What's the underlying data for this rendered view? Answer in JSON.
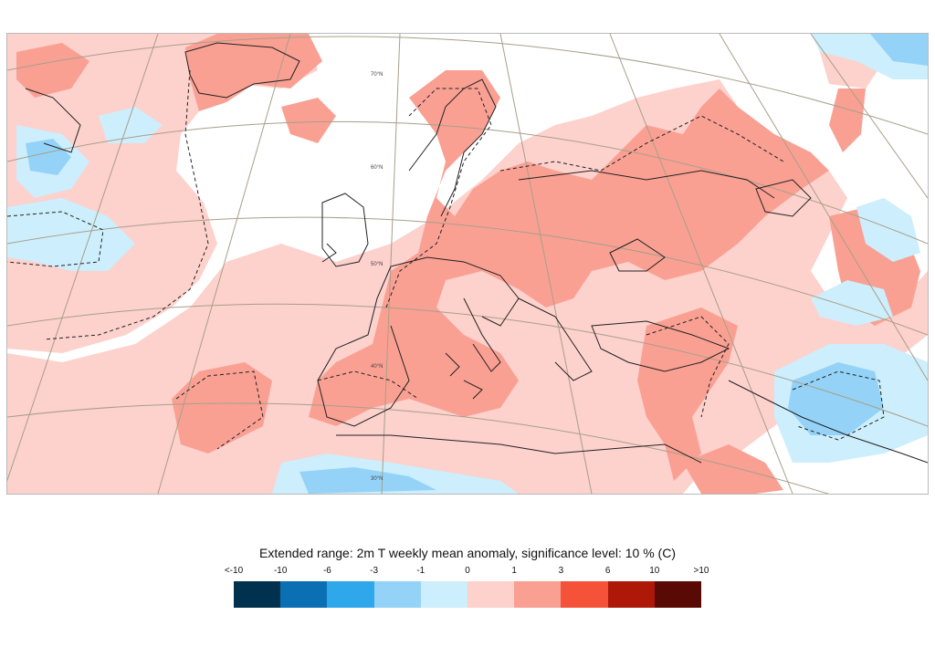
{
  "legend": {
    "title": "Extended range: 2m T weekly mean anomaly, significance level: 10 % (C)",
    "ticks": [
      "<-10",
      "-10",
      "-6",
      "-3",
      "-1",
      "0",
      "1",
      "3",
      "6",
      "10",
      ">10"
    ],
    "colors": [
      "#00324f",
      "#0a6fb3",
      "#2ea8ea",
      "#94d3f7",
      "#cdeefc",
      "#fdd1cc",
      "#f9a093",
      "#f4533a",
      "#ae1809",
      "#5a0a05"
    ]
  },
  "map": {
    "latitude_labels": [
      "70°N",
      "60°N",
      "50°N",
      "40°N",
      "30°N"
    ],
    "colors": {
      "weak_warm": "#fdd1cc",
      "moderate_warm": "#f9a093",
      "weak_cold": "#cdeefc",
      "moderate_cold": "#94d3f7",
      "graticule": "#a89f8a",
      "coastline": "#222222"
    }
  }
}
